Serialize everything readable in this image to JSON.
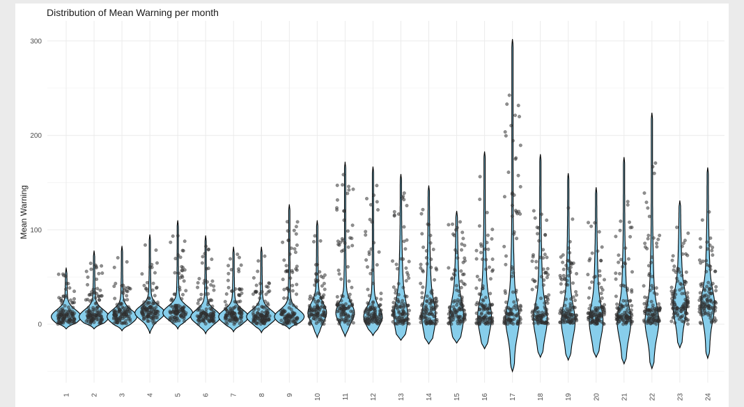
{
  "chart_data": {
    "type": "violin",
    "title": "Distribution of Mean Warning per month",
    "ylabel": "Mean Warning",
    "xlabel": "",
    "categories": [
      "1",
      "2",
      "3",
      "4",
      "5",
      "6",
      "7",
      "8",
      "9",
      "10",
      "11",
      "12",
      "13",
      "14",
      "15",
      "16",
      "17",
      "18",
      "19",
      "20",
      "21",
      "22",
      "23",
      "24"
    ],
    "y_ticks": [
      0,
      100,
      200,
      300
    ],
    "ylim": [
      -55,
      310
    ],
    "grid": true,
    "overlay": "jittered points",
    "violin_max": [
      60,
      78,
      83,
      95,
      110,
      94,
      82,
      82,
      127,
      110,
      172,
      167,
      159,
      147,
      120,
      183,
      302,
      180,
      160,
      145,
      177,
      224,
      131,
      166
    ],
    "violin_min": [
      -5,
      -5,
      -7,
      -10,
      -5,
      -10,
      -8,
      -9,
      -5,
      -14,
      -13,
      -12,
      -17,
      -21,
      -20,
      -26,
      -50,
      -35,
      -38,
      -35,
      -42,
      -47,
      -25,
      -36
    ],
    "mode": [
      8,
      8,
      8,
      12,
      12,
      8,
      8,
      8,
      8,
      12,
      12,
      8,
      8,
      8,
      8,
      8,
      5,
      5,
      3,
      3,
      3,
      3,
      20,
      20
    ],
    "point_max": [
      55,
      65,
      75,
      85,
      100,
      85,
      75,
      75,
      120,
      95,
      160,
      155,
      145,
      125,
      110,
      160,
      250,
      145,
      125,
      110,
      135,
      175,
      105,
      130
    ],
    "colors": {
      "violin_fill": "#87CEEB",
      "violin_stroke": "#000000",
      "points": "#333333",
      "grid": "#ebebeb",
      "background": "#ebebeb",
      "panel": "#ffffff"
    }
  }
}
